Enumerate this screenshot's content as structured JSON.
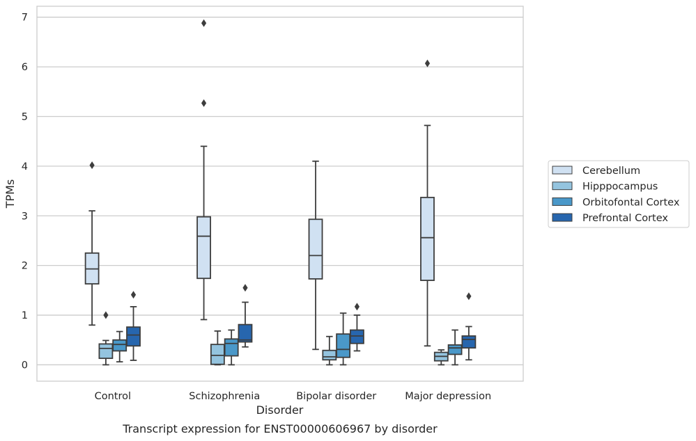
{
  "chart_data": {
    "type": "box",
    "caption": "Transcript expression for ENST00000606967 by disorder",
    "xlabel": "Disorder",
    "ylabel": "TPMs",
    "ylim": [
      -0.33,
      7.22
    ],
    "yticks": [
      0,
      1,
      2,
      3,
      4,
      5,
      6,
      7
    ],
    "grid": true,
    "legend_position": "right",
    "categories": [
      "Control",
      "Schizophrenia",
      "Bipolar disorder",
      "Major depression"
    ],
    "series": [
      {
        "name": "Cerebellum",
        "color": "#d0e1f2",
        "boxes": [
          {
            "whisker_low": 0.8,
            "q1": 1.63,
            "median": 1.93,
            "q3": 2.25,
            "whisker_high": 3.1,
            "outliers": [
              4.02
            ]
          },
          {
            "whisker_low": 0.91,
            "q1": 1.74,
            "median": 2.59,
            "q3": 2.98,
            "whisker_high": 4.4,
            "outliers": [
              5.27,
              6.88
            ]
          },
          {
            "whisker_low": 0.31,
            "q1": 1.73,
            "median": 2.2,
            "q3": 2.93,
            "whisker_high": 4.1,
            "outliers": []
          },
          {
            "whisker_low": 0.38,
            "q1": 1.7,
            "median": 2.56,
            "q3": 3.37,
            "whisker_high": 4.82,
            "outliers": [
              6.07
            ]
          }
        ]
      },
      {
        "name": "Hipppocampus",
        "color": "#94c4df",
        "boxes": [
          {
            "whisker_low": 0.0,
            "q1": 0.13,
            "median": 0.33,
            "q3": 0.42,
            "whisker_high": 0.49,
            "outliers": [
              1.0
            ]
          },
          {
            "whisker_low": 0.0,
            "q1": 0.01,
            "median": 0.19,
            "q3": 0.41,
            "whisker_high": 0.68,
            "outliers": []
          },
          {
            "whisker_low": 0.0,
            "q1": 0.1,
            "median": 0.16,
            "q3": 0.29,
            "whisker_high": 0.57,
            "outliers": []
          },
          {
            "whisker_low": 0.0,
            "q1": 0.08,
            "median": 0.17,
            "q3": 0.25,
            "whisker_high": 0.3,
            "outliers": []
          }
        ]
      },
      {
        "name": "Orbitofontal Cortex",
        "color": "#4a98c9",
        "boxes": [
          {
            "whisker_low": 0.06,
            "q1": 0.28,
            "median": 0.41,
            "q3": 0.5,
            "whisker_high": 0.67,
            "outliers": []
          },
          {
            "whisker_low": 0.0,
            "q1": 0.18,
            "median": 0.43,
            "q3": 0.52,
            "whisker_high": 0.7,
            "outliers": []
          },
          {
            "whisker_low": 0.0,
            "q1": 0.15,
            "median": 0.31,
            "q3": 0.62,
            "whisker_high": 1.04,
            "outliers": []
          },
          {
            "whisker_low": 0.0,
            "q1": 0.21,
            "median": 0.34,
            "q3": 0.4,
            "whisker_high": 0.7,
            "outliers": []
          }
        ]
      },
      {
        "name": "Prefrontal Cortex",
        "color": "#2766ae",
        "boxes": [
          {
            "whisker_low": 0.09,
            "q1": 0.38,
            "median": 0.6,
            "q3": 0.76,
            "whisker_high": 1.17,
            "outliers": [
              1.41
            ]
          },
          {
            "whisker_low": 0.36,
            "q1": 0.46,
            "median": 0.5,
            "q3": 0.81,
            "whisker_high": 1.26,
            "outliers": [
              1.55
            ]
          },
          {
            "whisker_low": 0.28,
            "q1": 0.43,
            "median": 0.58,
            "q3": 0.7,
            "whisker_high": 1.0,
            "outliers": [
              1.17
            ]
          },
          {
            "whisker_low": 0.1,
            "q1": 0.34,
            "median": 0.51,
            "q3": 0.58,
            "whisker_high": 0.77,
            "outliers": [
              1.38
            ]
          }
        ]
      }
    ]
  }
}
